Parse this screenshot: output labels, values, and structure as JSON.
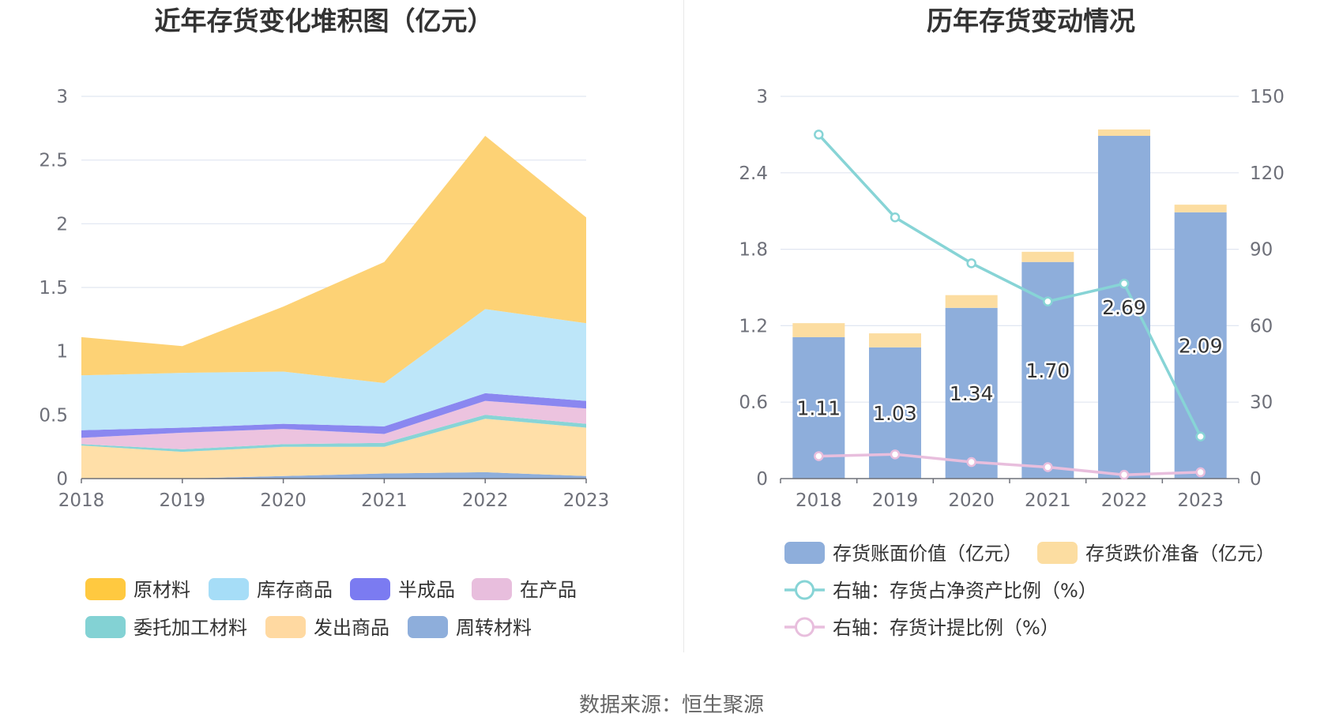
{
  "source_text": "数据来源：恒生聚源",
  "chart_data": [
    {
      "type": "area",
      "stacked": true,
      "title": "近年存货变化堆积图（亿元）",
      "xlabel": "",
      "ylabel": "",
      "categories": [
        "2018",
        "2019",
        "2020",
        "2021",
        "2022",
        "2023"
      ],
      "ylim": [
        0,
        3
      ],
      "yticks": [
        "0",
        "0.5",
        "1",
        "1.5",
        "2",
        "2.5",
        "3"
      ],
      "grid": true,
      "legend_position": "bottom",
      "series": [
        {
          "name": "周转材料",
          "color": "#8eaedb",
          "values": [
            0.0,
            0.0,
            0.02,
            0.04,
            0.05,
            0.02
          ]
        },
        {
          "name": "发出商品",
          "color": "#ffdfa8",
          "values": [
            0.26,
            0.21,
            0.23,
            0.21,
            0.42,
            0.38
          ]
        },
        {
          "name": "委托加工材料",
          "color": "#88d4d6",
          "values": [
            0.01,
            0.02,
            0.02,
            0.03,
            0.03,
            0.03
          ]
        },
        {
          "name": "在产品",
          "color": "#ecc3df",
          "values": [
            0.05,
            0.13,
            0.12,
            0.07,
            0.11,
            0.12
          ]
        },
        {
          "name": "半成品",
          "color": "#8a87f0",
          "values": [
            0.06,
            0.04,
            0.04,
            0.06,
            0.06,
            0.06
          ]
        },
        {
          "name": "库存商品",
          "color": "#bde6f9",
          "values": [
            0.43,
            0.43,
            0.41,
            0.34,
            0.66,
            0.61
          ]
        },
        {
          "name": "原材料",
          "color": "#fdd275",
          "values": [
            0.3,
            0.21,
            0.51,
            0.95,
            1.36,
            0.83
          ]
        }
      ],
      "legend": [
        {
          "name": "原材料",
          "color": "#ffc940"
        },
        {
          "name": "库存商品",
          "color": "#a6ddf7"
        },
        {
          "name": "半成品",
          "color": "#7b7bf1"
        },
        {
          "name": "在产品",
          "color": "#e8bedd"
        },
        {
          "name": "委托加工材料",
          "color": "#83d2d4"
        },
        {
          "name": "发出商品",
          "color": "#ffd9a1"
        },
        {
          "name": "周转材料",
          "color": "#8eaedb"
        }
      ]
    },
    {
      "type": "bar",
      "stacked": true,
      "title": "历年存货变动情况",
      "xlabel": "",
      "ylabel": "",
      "categories": [
        "2018",
        "2019",
        "2020",
        "2021",
        "2022",
        "2023"
      ],
      "ylim": [
        0,
        3
      ],
      "yticks": [
        "0",
        "0.6",
        "1.2",
        "1.8",
        "2.4",
        "3"
      ],
      "y2lim": [
        0,
        150
      ],
      "y2ticks": [
        "0",
        "30",
        "60",
        "90",
        "120",
        "150"
      ],
      "grid": true,
      "legend_position": "bottom",
      "bar_series": [
        {
          "name": "存货账面价值（亿元）",
          "color": "#8eaedb",
          "values": [
            1.11,
            1.03,
            1.34,
            1.7,
            2.69,
            2.09
          ],
          "labels": [
            "1.11",
            "1.03",
            "1.34",
            "1.70",
            "2.69",
            "2.09"
          ]
        },
        {
          "name": "存货跌价准备（亿元）",
          "color": "#fcdda1",
          "values": [
            0.11,
            0.11,
            0.1,
            0.08,
            0.05,
            0.06
          ]
        }
      ],
      "line_series": [
        {
          "name": "右轴：存货占净资产比例（%）",
          "color": "#87d4d6",
          "axis": "right",
          "values": [
            135.0,
            102.5,
            84.5,
            69.5,
            76.5,
            16.5
          ]
        },
        {
          "name": "右轴：存货计提比例（%）",
          "color": "#e8bedd",
          "axis": "right",
          "values": [
            8.8,
            9.5,
            6.5,
            4.5,
            1.5,
            2.5
          ]
        }
      ]
    }
  ]
}
